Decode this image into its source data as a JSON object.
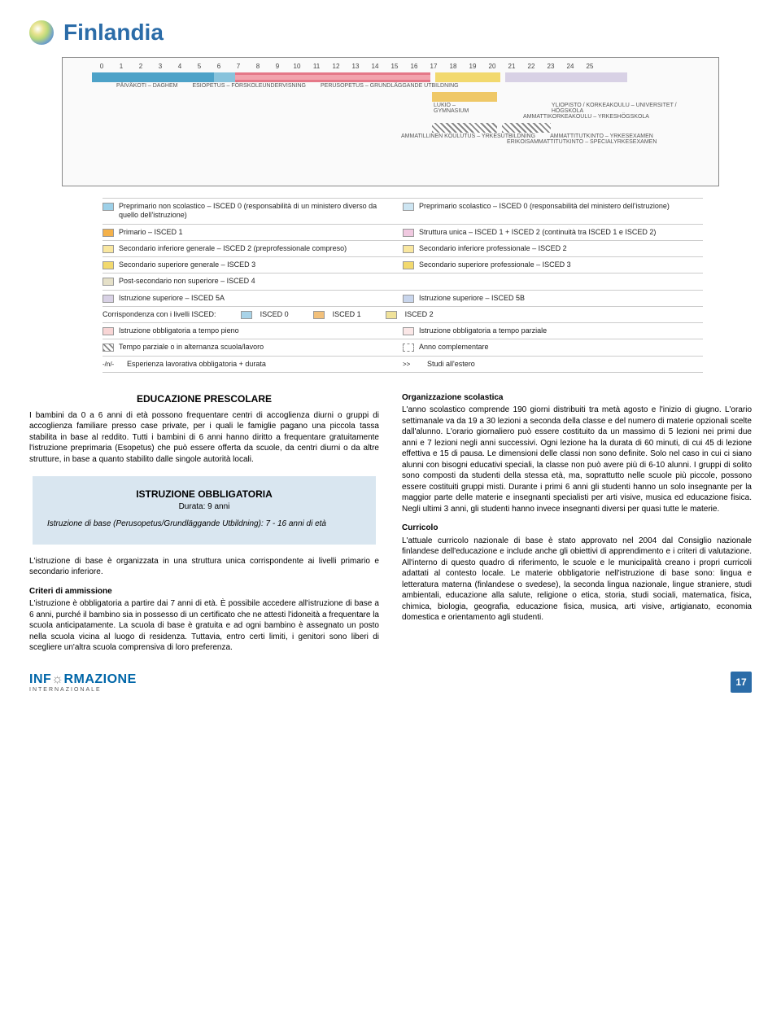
{
  "header": {
    "title": "Finlandia"
  },
  "axis_ticks": [
    "0",
    "1",
    "2",
    "3",
    "4",
    "5",
    "6",
    "7",
    "8",
    "9",
    "10",
    "11",
    "12",
    "13",
    "14",
    "15",
    "16",
    "17",
    "18",
    "19",
    "20",
    "21",
    "22",
    "23",
    "24",
    "25"
  ],
  "chart_labels_row1_left": "PÄIVÄKOTI – DAGHEM",
  "chart_labels_row1_mid": "ESIOPETUS – FÖRSKOLEUNDERVISNING",
  "chart_labels_row1_right": "PERUSOPETUS – GRUNDLÄGGANDE UTBILDNING",
  "chart_labels_row2a": "LUKIO – GYMNASIUM",
  "chart_labels_row2b": "YLIOPISTO / KORKEAKOULU – UNIVERSITET / HÖGSKOLA",
  "chart_labels_row2c": "AMMATTIKORKEAKOULU – YRKESHÖGSKOLA",
  "chart_labels_row3a": "AMMATILLINEN KOULUTUS – YRKESUTBILDNING",
  "chart_labels_row3b": "AMMATTITUTKINTO – YRKESEXAMEN",
  "chart_labels_row3c": "ERIKOISAMMATTITUTKINTO – SPECIALYRKESEXAMEN",
  "legend": [
    [
      {
        "color": "#9dd0e8",
        "text": "Preprimario non scolastico – ISCED 0 (responsabilità di un ministero diverso da quello dell'istruzione)"
      },
      {
        "color": "#cde5f2",
        "text": "Preprimario scolastico – ISCED 0 (responsabilità del ministero dell'istruzione)"
      }
    ],
    [
      {
        "color": "#f4b14a",
        "text": "Primario – ISCED 1"
      },
      {
        "color": "#f0c9e0",
        "text": "Struttura unica – ISCED 1 + ISCED 2 (continuità tra ISCED 1 e ISCED 2)"
      }
    ],
    [
      {
        "color": "#f9e7a0",
        "text": "Secondario inferiore generale – ISCED 2 (preprofessionale compreso)"
      },
      {
        "color": "#f9e7a0",
        "text": "Secondario inferiore professionale – ISCED 2"
      }
    ],
    [
      {
        "color": "#f2d96e",
        "text": "Secondario superiore generale – ISCED 3"
      },
      {
        "color": "#f2d96e",
        "text": "Secondario superiore professionale – ISCED 3"
      }
    ],
    [
      {
        "color": "#e5e0c8",
        "text": "Post-secondario non superiore – ISCED 4"
      },
      null
    ],
    [
      {
        "color": "#d8d1e5",
        "text": "Istruzione superiore – ISCED 5A"
      },
      {
        "color": "#c8d5ec",
        "text": "Istruzione superiore – ISCED 5B"
      }
    ]
  ],
  "isced_corr_label": "Corrispondenza con i livelli ISCED:",
  "isced0": "ISCED 0",
  "isced1": "ISCED 1",
  "isced2": "ISCED 2",
  "legend2": [
    [
      {
        "color": "#f8d5d5",
        "text": "Istruzione obbligatoria a tempo pieno"
      },
      {
        "color": "#fbe7e7",
        "text": "Istruzione obbligatoria a tempo parziale"
      }
    ],
    [
      {
        "pattern": "diag",
        "text": "Tempo parziale o in alternanza scuola/lavoro"
      },
      {
        "pattern": "dash",
        "text": "Anno complementare"
      }
    ],
    [
      {
        "plain": "-/n/-",
        "text": "Esperienza lavorativa obbligatoria + durata"
      },
      {
        "plain": ">>",
        "text": "Studi all'estero"
      }
    ]
  ],
  "body": {
    "prescolare_h": "EDUCAZIONE PRESCOLARE",
    "prescolare_p": "I bambini da 0 a 6 anni di età possono frequentare centri di accoglienza diurni o gruppi di accoglienza familiare presso case private, per i quali le famiglie pagano una piccola tassa stabilita in base al reddito. Tutti i bambini di 6 anni hanno diritto a frequentare gratuitamente l'istruzione preprimaria (Esopetus) che può essere offerta da scuole, da centri diurni o da altre strutture, in base a quanto stabilito dalle singole autorità locali.",
    "obbl_h": "ISTRUZIONE OBBLIGATORIA",
    "obbl_d": "Durata: 9 anni",
    "obbl_p": "Istruzione di base (Perusopetus/Grundläggande Utbildning): 7 - 16 anni di età",
    "base_p": "L'istruzione di base è organizzata in una struttura unica corrispondente ai livelli primario e secondario inferiore.",
    "crit_h": "Criteri di ammissione",
    "crit_p": "L'istruzione è obbligatoria a partire dai 7 anni di età. È possibile accedere all'istruzione di base a 6 anni, purché il bambino sia in possesso di un certificato che ne attesti l'idoneità a frequentare la scuola anticipatamente. La scuola di base è gratuita e ad ogni bambino è assegnato un posto nella scuola vicina al luogo di residenza. Tuttavia, entro certi limiti, i genitori sono liberi di scegliere un'altra scuola comprensiva di loro preferenza.",
    "org_h": "Organizzazione scolastica",
    "org_p": "L'anno scolastico comprende 190 giorni distribuiti tra metà agosto e l'inizio di giugno. L'orario settimanale va da 19 a 30 lezioni a seconda della classe e del numero di materie opzionali scelte dall'alunno. L'orario giornaliero può essere costituito da un massimo di 5 lezioni nei primi due anni e 7 lezioni negli anni successivi. Ogni lezione ha la durata di 60 minuti, di cui 45 di lezione effettiva e 15 di pausa. Le dimensioni delle classi non sono definite. Solo nel caso in cui ci siano alunni con bisogni educativi speciali, la classe non può avere più di 6-10 alunni. I gruppi di solito sono composti da studenti della stessa età, ma, soprattutto nelle scuole più piccole, possono essere costituiti gruppi misti. Durante i primi 6 anni gli studenti hanno un solo insegnante per la maggior parte delle materie e insegnanti specialisti per arti visive, musica ed educazione fisica. Negli ultimi 3 anni, gli studenti hanno invece insegnanti diversi per quasi tutte le materie.",
    "curr_h": "Curricolo",
    "curr_p": "L'attuale curricolo nazionale di base è stato approvato nel 2004 dal Consiglio nazionale finlandese dell'educazione e include anche gli obiettivi di apprendimento e i criteri di valutazione. All'interno di questo quadro di riferimento, le scuole e le municipalità creano i propri curricoli adattati al contesto locale. Le materie obbligatorie nell'istruzione di base sono: lingua e letteratura materna (finlandese o svedese), la seconda lingua nazionale, lingue straniere, studi ambientali, educazione alla salute, religione o etica, storia, studi sociali, matematica, fisica, chimica, biologia, geografia, educazione fisica, musica, arti visive, artigianato, economia domestica e orientamento agli studenti."
  },
  "footer": {
    "brand1": "INF",
    "brand_icon": "☼",
    "brand2": "RMAZIONE",
    "brand_sub": "INTERNAZIONALE",
    "page": "17"
  },
  "colors": {
    "bar1": "#4da2c8",
    "bar2": "#f2a3ad",
    "bar3": "#efc867",
    "hatch": "#888888"
  }
}
